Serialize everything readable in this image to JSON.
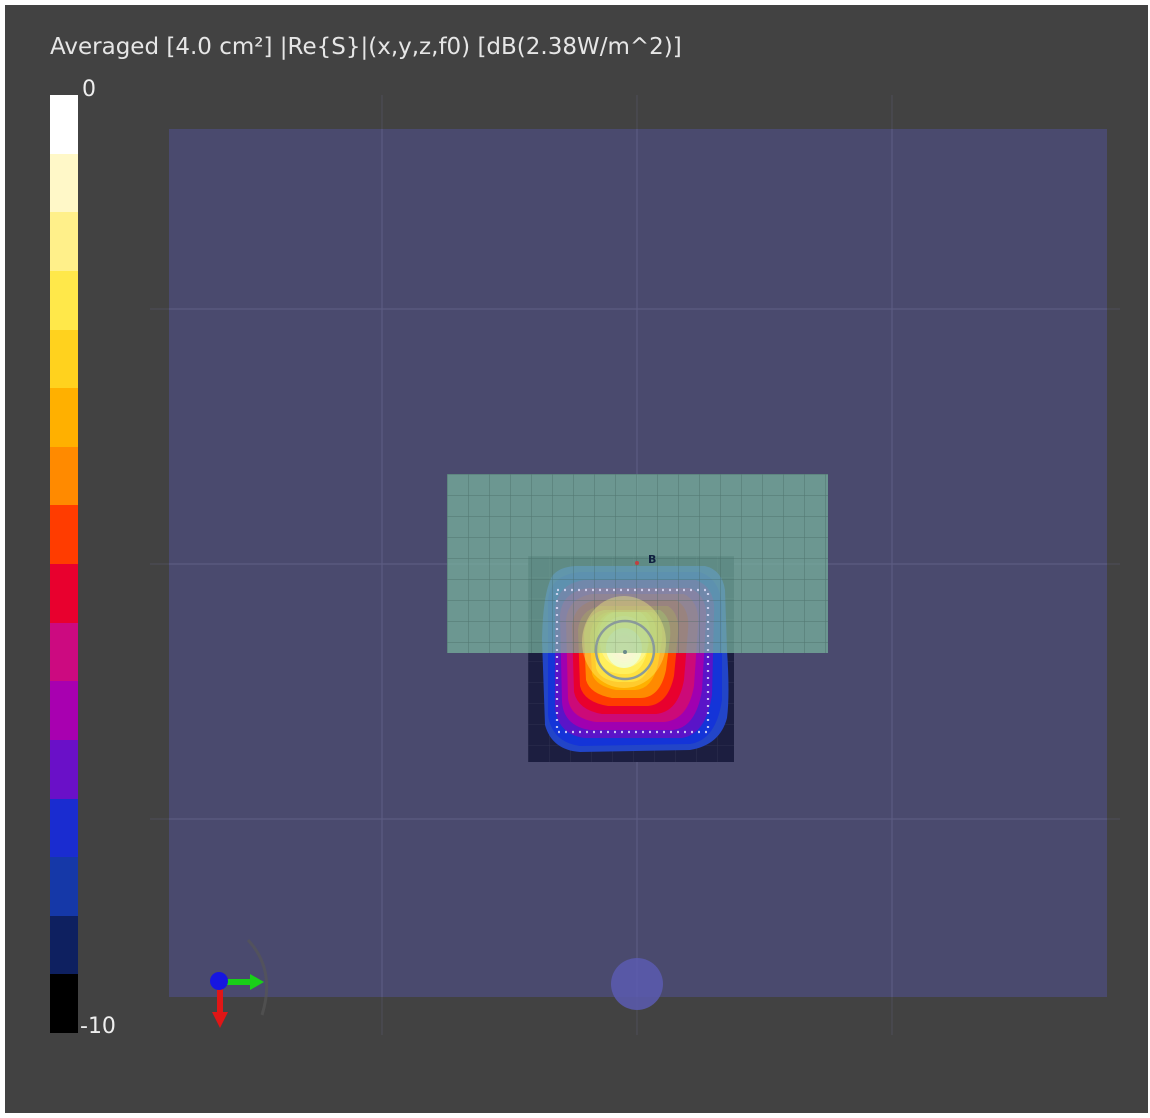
{
  "title": "Averaged [4.0 cm²] |Re{S}|(x,y,z,f0) [dB(2.38W/m^2)]",
  "colorbar": {
    "max_label": "0",
    "min_label": "-10",
    "colors": [
      "#ffffff",
      "#fff8c8",
      "#fff08a",
      "#ffe84a",
      "#ffd21e",
      "#ffb000",
      "#ff8a00",
      "#ff3c00",
      "#e8002e",
      "#cc0a80",
      "#a800b0",
      "#6a10c8",
      "#1a2cd0",
      "#1538a8",
      "#0e2060",
      "#000000"
    ]
  },
  "scene": {
    "probe_marker_label": "B",
    "colors": {
      "phantom": "#4a4a6e",
      "measurement_grid": "#7ab5a0",
      "hotspot_peak": "#f8f4ff"
    }
  },
  "axes_triad": {
    "x_color": "#19d019",
    "y_color": "#e01616",
    "z_color": "#1616e0"
  }
}
